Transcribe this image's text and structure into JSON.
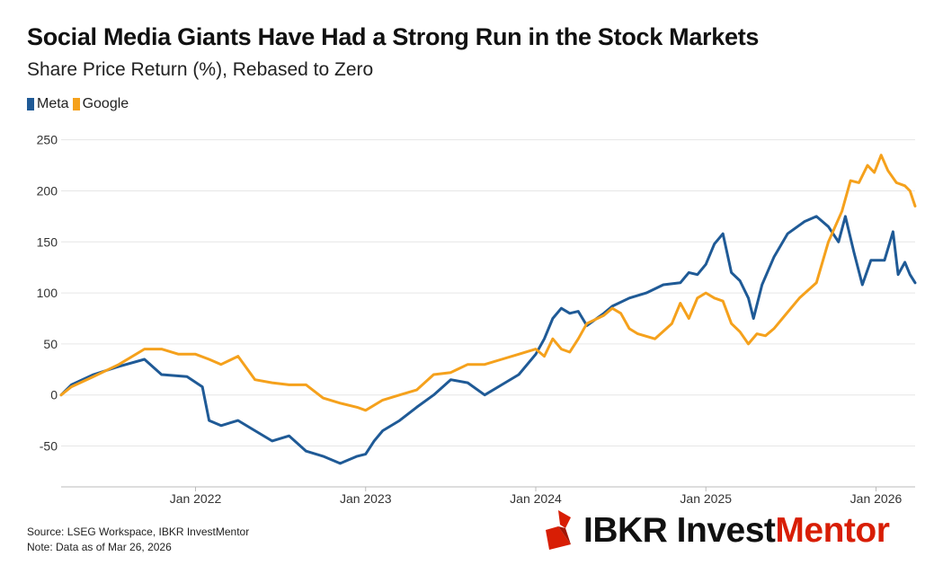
{
  "header": {
    "title": "Social Media Giants Have Had a Strong Run in the Stock Markets",
    "subtitle": "Share Price Return (%), Rebased to Zero"
  },
  "legend": [
    {
      "label": "Meta",
      "color": "#1f5a96"
    },
    {
      "label": "Google",
      "color": "#f5a11c"
    }
  ],
  "footer": {
    "source": "Source: LSEG Workspace, IBKR InvestMentor",
    "note": "Note: Data as of Mar 26, 2026"
  },
  "brand": {
    "part1": "IBKR Invest",
    "part2": "Mentor",
    "icon": "ibkr-logo-icon",
    "accent_color": "#d81e05"
  },
  "chart_data": {
    "type": "line",
    "title": "Social Media Giants Have Had a Strong Run in the Stock Markets",
    "subtitle": "Share Price Return (%), Rebased to Zero",
    "xlabel": "",
    "ylabel": "",
    "xlim": [
      2021.21,
      2026.23
    ],
    "ylim": [
      -90,
      255
    ],
    "yticks": [
      -50,
      0,
      50,
      100,
      150,
      200,
      250
    ],
    "xticks": [
      {
        "value": 2022.0,
        "label": "Jan 2022"
      },
      {
        "value": 2023.0,
        "label": "Jan 2023"
      },
      {
        "value": 2024.0,
        "label": "Jan 2024"
      },
      {
        "value": 2025.0,
        "label": "Jan 2025"
      },
      {
        "value": 2026.0,
        "label": "Jan 2026"
      }
    ],
    "grid": "horizontal",
    "series": [
      {
        "name": "Meta",
        "color": "#1f5a96",
        "points": [
          [
            2021.21,
            0
          ],
          [
            2021.27,
            10
          ],
          [
            2021.4,
            20
          ],
          [
            2021.55,
            28
          ],
          [
            2021.7,
            35
          ],
          [
            2021.8,
            20
          ],
          [
            2021.95,
            18
          ],
          [
            2022.04,
            8
          ],
          [
            2022.08,
            -25
          ],
          [
            2022.15,
            -30
          ],
          [
            2022.25,
            -25
          ],
          [
            2022.35,
            -35
          ],
          [
            2022.45,
            -45
          ],
          [
            2022.55,
            -40
          ],
          [
            2022.65,
            -55
          ],
          [
            2022.75,
            -60
          ],
          [
            2022.85,
            -67
          ],
          [
            2022.95,
            -60
          ],
          [
            2023.0,
            -58
          ],
          [
            2023.05,
            -45
          ],
          [
            2023.1,
            -35
          ],
          [
            2023.2,
            -25
          ],
          [
            2023.3,
            -12
          ],
          [
            2023.4,
            0
          ],
          [
            2023.5,
            15
          ],
          [
            2023.6,
            12
          ],
          [
            2023.7,
            0
          ],
          [
            2023.8,
            10
          ],
          [
            2023.9,
            20
          ],
          [
            2024.0,
            40
          ],
          [
            2024.05,
            55
          ],
          [
            2024.1,
            75
          ],
          [
            2024.15,
            85
          ],
          [
            2024.2,
            80
          ],
          [
            2024.25,
            82
          ],
          [
            2024.3,
            68
          ],
          [
            2024.4,
            80
          ],
          [
            2024.45,
            87
          ],
          [
            2024.55,
            95
          ],
          [
            2024.65,
            100
          ],
          [
            2024.75,
            108
          ],
          [
            2024.85,
            110
          ],
          [
            2024.9,
            120
          ],
          [
            2024.95,
            118
          ],
          [
            2025.0,
            128
          ],
          [
            2025.05,
            148
          ],
          [
            2025.1,
            158
          ],
          [
            2025.15,
            120
          ],
          [
            2025.2,
            112
          ],
          [
            2025.25,
            95
          ],
          [
            2025.28,
            75
          ],
          [
            2025.33,
            108
          ],
          [
            2025.4,
            135
          ],
          [
            2025.48,
            158
          ],
          [
            2025.58,
            170
          ],
          [
            2025.65,
            175
          ],
          [
            2025.72,
            165
          ],
          [
            2025.78,
            150
          ],
          [
            2025.82,
            175
          ],
          [
            2025.87,
            140
          ],
          [
            2025.92,
            108
          ],
          [
            2025.97,
            132
          ],
          [
            2026.05,
            132
          ],
          [
            2026.1,
            160
          ],
          [
            2026.13,
            118
          ],
          [
            2026.17,
            130
          ],
          [
            2026.2,
            118
          ],
          [
            2026.23,
            110
          ]
        ]
      },
      {
        "name": "Google",
        "color": "#f5a11c",
        "points": [
          [
            2021.21,
            0
          ],
          [
            2021.27,
            8
          ],
          [
            2021.4,
            18
          ],
          [
            2021.55,
            30
          ],
          [
            2021.7,
            45
          ],
          [
            2021.8,
            45
          ],
          [
            2021.9,
            40
          ],
          [
            2022.0,
            40
          ],
          [
            2022.08,
            35
          ],
          [
            2022.15,
            30
          ],
          [
            2022.25,
            38
          ],
          [
            2022.35,
            15
          ],
          [
            2022.45,
            12
          ],
          [
            2022.55,
            10
          ],
          [
            2022.65,
            10
          ],
          [
            2022.75,
            -3
          ],
          [
            2022.85,
            -8
          ],
          [
            2022.95,
            -12
          ],
          [
            2023.0,
            -15
          ],
          [
            2023.1,
            -5
          ],
          [
            2023.2,
            0
          ],
          [
            2023.3,
            5
          ],
          [
            2023.4,
            20
          ],
          [
            2023.5,
            22
          ],
          [
            2023.6,
            30
          ],
          [
            2023.7,
            30
          ],
          [
            2023.8,
            35
          ],
          [
            2023.9,
            40
          ],
          [
            2024.0,
            45
          ],
          [
            2024.05,
            38
          ],
          [
            2024.1,
            55
          ],
          [
            2024.15,
            45
          ],
          [
            2024.2,
            42
          ],
          [
            2024.25,
            55
          ],
          [
            2024.3,
            70
          ],
          [
            2024.4,
            78
          ],
          [
            2024.45,
            85
          ],
          [
            2024.5,
            80
          ],
          [
            2024.55,
            65
          ],
          [
            2024.6,
            60
          ],
          [
            2024.7,
            55
          ],
          [
            2024.8,
            70
          ],
          [
            2024.85,
            90
          ],
          [
            2024.9,
            75
          ],
          [
            2024.95,
            95
          ],
          [
            2025.0,
            100
          ],
          [
            2025.05,
            95
          ],
          [
            2025.1,
            92
          ],
          [
            2025.15,
            70
          ],
          [
            2025.2,
            62
          ],
          [
            2025.25,
            50
          ],
          [
            2025.3,
            60
          ],
          [
            2025.35,
            58
          ],
          [
            2025.4,
            65
          ],
          [
            2025.45,
            75
          ],
          [
            2025.55,
            95
          ],
          [
            2025.65,
            110
          ],
          [
            2025.72,
            150
          ],
          [
            2025.8,
            180
          ],
          [
            2025.85,
            210
          ],
          [
            2025.9,
            208
          ],
          [
            2025.95,
            225
          ],
          [
            2025.99,
            218
          ],
          [
            2026.03,
            235
          ],
          [
            2026.07,
            220
          ],
          [
            2026.12,
            208
          ],
          [
            2026.17,
            205
          ],
          [
            2026.2,
            200
          ],
          [
            2026.23,
            185
          ]
        ]
      }
    ]
  }
}
